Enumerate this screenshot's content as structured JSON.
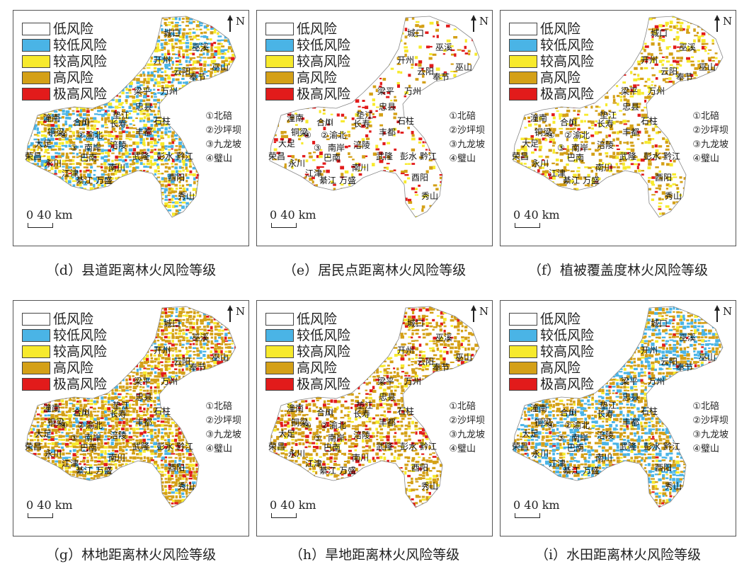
{
  "legend": {
    "items": [
      {
        "label": "低风险",
        "color": "#ffffff"
      },
      {
        "label": "较低风险",
        "color": "#4ab4e6"
      },
      {
        "label": "较高风险",
        "color": "#f7ea2c"
      },
      {
        "label": "高风险",
        "color": "#d4a017"
      },
      {
        "label": "极高风险",
        "color": "#e21b1b"
      }
    ]
  },
  "north_label": "N",
  "scale_label": "0  40 km",
  "districts": [
    "①北碚",
    "②沙坪坝",
    "③九龙坡",
    "④璧山"
  ],
  "places": {
    "chengkou": "城口",
    "wuxi": "巫溪",
    "kaizhou": "开州",
    "wushan": "巫山",
    "yunyang": "云阳",
    "fengjie": "奉节",
    "liangping": "梁平",
    "wanzhou": "万州",
    "zhongxian": "忠县",
    "dianjiang": "垫江",
    "shizhu": "石柱",
    "tongnan": "潼南",
    "hechuan": "合川",
    "changshou": "长寿",
    "tongliang": "铜梁",
    "yubei": "渝北",
    "fengdu": "丰都",
    "dazu": "大足",
    "nanan": "南岸",
    "fuling": "涪陵",
    "rongchang": "荣昌",
    "yongchuan": "永川",
    "banan": "巴南",
    "wulong": "武隆",
    "pengshui": "彭水",
    "qianjiang": "黔江",
    "nanchuan": "南川",
    "jiangjin": "江津",
    "qijiang": "綦江",
    "wansheng": "万盛",
    "youyang": "酉阳",
    "xiushan": "秀山",
    "c1": "①",
    "c2": "②",
    "c3": "③",
    "c4": "④"
  },
  "panels": [
    {
      "caption": "（d）县道距离林火风险等级",
      "mix": {
        "white": 0.15,
        "blue": 0.25,
        "yellow": 0.2,
        "orange": 0.35,
        "red": 0.05
      }
    },
    {
      "caption": "（e）居民点距离林火风险等级",
      "mix": {
        "white": 0.8,
        "blue": 0.0,
        "yellow": 0.05,
        "orange": 0.08,
        "red": 0.07
      }
    },
    {
      "caption": "（f）植被覆盖度林火风险等级",
      "mix": {
        "white": 0.55,
        "blue": 0.0,
        "yellow": 0.15,
        "orange": 0.25,
        "red": 0.05
      }
    },
    {
      "caption": "（g）林地距离林火风险等级",
      "mix": {
        "white": 0.05,
        "blue": 0.12,
        "yellow": 0.13,
        "orange": 0.6,
        "red": 0.1
      }
    },
    {
      "caption": "（h）旱地距离林火风险等级",
      "mix": {
        "white": 0.35,
        "blue": 0.0,
        "yellow": 0.1,
        "orange": 0.45,
        "red": 0.1
      }
    },
    {
      "caption": "（i）水田距离林火风险等级",
      "mix": {
        "white": 0.15,
        "blue": 0.35,
        "yellow": 0.05,
        "orange": 0.43,
        "red": 0.02
      }
    }
  ]
}
